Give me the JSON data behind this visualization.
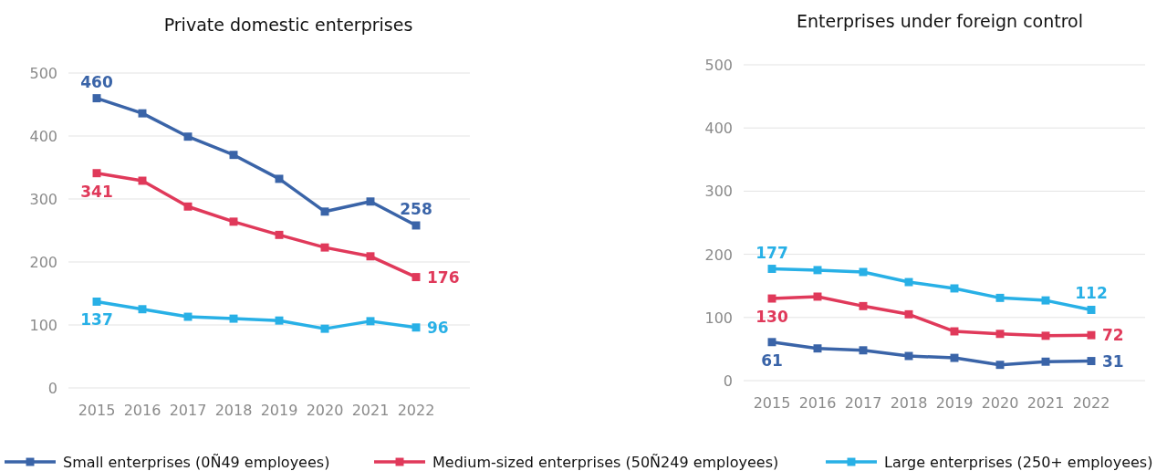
{
  "chart_data": [
    {
      "type": "line",
      "title": "Private domestic enterprises",
      "categories": [
        "2015",
        "2016",
        "2017",
        "2018",
        "2019",
        "2020",
        "2021",
        "2022"
      ],
      "ylim": [
        0,
        500
      ],
      "yticks": [
        0,
        100,
        200,
        300,
        400,
        500
      ],
      "grid": "y",
      "marker": "square",
      "legend": "bottom",
      "series": [
        {
          "name": "Small enterprises (0Ñ49 employees)",
          "color": "#3a64a8",
          "values": [
            460,
            436,
            399,
            370,
            332,
            280,
            296,
            258
          ],
          "value_labels": [
            "460",
            null,
            null,
            null,
            null,
            null,
            null,
            "258"
          ]
        },
        {
          "name": "Medium-sized enterprises (50Ñ249 employees)",
          "color": "#e0395a",
          "values": [
            341,
            329,
            288,
            264,
            243,
            223,
            209,
            176
          ],
          "value_labels": [
            "341",
            null,
            null,
            null,
            null,
            null,
            null,
            "176"
          ]
        },
        {
          "name": "Large enterprises (250+ employees)",
          "color": "#28b0e6",
          "values": [
            137,
            125,
            113,
            110,
            107,
            94,
            106,
            96
          ],
          "value_labels": [
            "137",
            null,
            null,
            null,
            null,
            null,
            null,
            "96"
          ]
        }
      ]
    },
    {
      "type": "line",
      "title": "Enterprises under foreign control",
      "categories": [
        "2015",
        "2016",
        "2017",
        "2018",
        "2019",
        "2020",
        "2021",
        "2022"
      ],
      "ylim": [
        0,
        500
      ],
      "yticks": [
        0,
        100,
        200,
        300,
        400,
        500
      ],
      "grid": "y",
      "marker": "square",
      "series": [
        {
          "color": "#3a64a8",
          "values": [
            61,
            51,
            48,
            39,
            36,
            25,
            30,
            31
          ],
          "value_labels": [
            "61",
            null,
            null,
            null,
            null,
            null,
            null,
            "31"
          ]
        },
        {
          "color": "#e0395a",
          "values": [
            130,
            133,
            118,
            105,
            78,
            74,
            71,
            72
          ],
          "value_labels": [
            "130",
            null,
            null,
            null,
            null,
            null,
            null,
            "72"
          ]
        },
        {
          "color": "#28b0e6",
          "values": [
            177,
            175,
            172,
            156,
            146,
            131,
            127,
            112
          ],
          "value_labels": [
            "177",
            null,
            null,
            null,
            null,
            null,
            null,
            "112"
          ]
        }
      ]
    }
  ]
}
